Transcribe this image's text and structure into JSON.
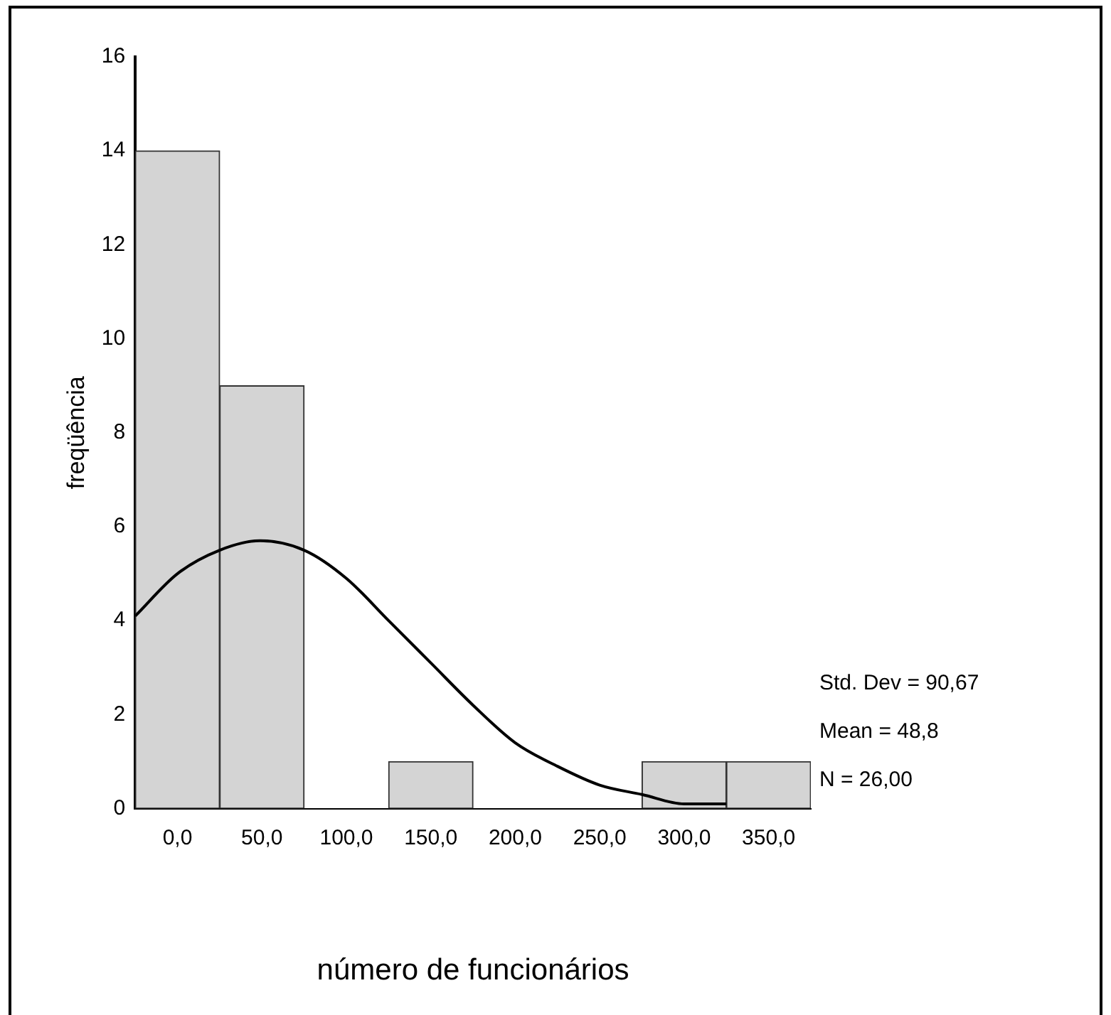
{
  "chart_data": {
    "type": "histogram",
    "xlabel": "número de funcionários",
    "ylabel": "freqüência",
    "bins": [
      -25,
      25,
      75,
      125,
      175,
      225,
      275,
      325,
      375
    ],
    "values": [
      14,
      9,
      0,
      1,
      0,
      0,
      1,
      1
    ],
    "color": "#d4d4d4",
    "series": [
      {
        "type": "line",
        "color": "#000000",
        "x": [
          -25,
          0,
          25,
          48.8,
          75,
          100,
          125,
          150,
          175,
          200,
          225,
          250,
          275,
          300,
          325
        ],
        "values": [
          4.1,
          5.0,
          5.5,
          5.7,
          5.5,
          4.9,
          4.0,
          3.1,
          2.2,
          1.4,
          0.9,
          0.5,
          0.3,
          0.1,
          0.1
        ]
      }
    ],
    "xlim": [
      -25,
      375
    ],
    "xticks": [
      {
        "value": 0,
        "label": "0,0"
      },
      {
        "value": 50,
        "label": "50,0"
      },
      {
        "value": 100,
        "label": "100,0"
      },
      {
        "value": 150,
        "label": "150,0"
      },
      {
        "value": 200,
        "label": "200,0"
      },
      {
        "value": 250,
        "label": "250,0"
      },
      {
        "value": 300,
        "label": "300,0"
      },
      {
        "value": 350,
        "label": "350,0"
      }
    ],
    "ylim": [
      0,
      16
    ],
    "yticks": [
      0,
      2,
      4,
      6,
      8,
      10,
      12,
      14,
      16
    ],
    "grid": false,
    "legend": false,
    "marker": "none",
    "line_style": "solid",
    "annotations": [
      "Std. Dev = 90,67",
      "Mean = 48,8",
      "N = 26,00"
    ]
  }
}
